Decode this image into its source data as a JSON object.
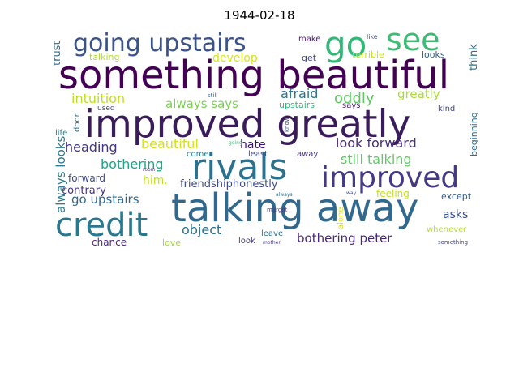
{
  "title": "1944-02-18",
  "words": [
    {
      "text": "something beautiful",
      "color": "#440154"
    },
    {
      "text": "improved greatly",
      "color": "#3b1c5a"
    },
    {
      "text": "talking away",
      "color": "#31688e"
    },
    {
      "text": "going upstairs",
      "color": "#3b528b"
    },
    {
      "text": "go",
      "color": "#35b779"
    },
    {
      "text": "see",
      "color": "#3cbc75"
    },
    {
      "text": "rivals",
      "color": "#2c728e"
    },
    {
      "text": "improved",
      "color": "#443983"
    },
    {
      "text": "credit",
      "color": "#2a788e"
    },
    {
      "text": "afraid",
      "color": "#2c728e"
    },
    {
      "text": "oddly",
      "color": "#5ec962"
    },
    {
      "text": "greatly",
      "color": "#a8db34"
    },
    {
      "text": "intuition",
      "color": "#bddf26"
    },
    {
      "text": "always says",
      "color": "#7ad151"
    },
    {
      "text": "develop",
      "color": "#d8e219"
    },
    {
      "text": "beautiful",
      "color": "#d2e21b"
    },
    {
      "text": "look forward",
      "color": "#472f7d"
    },
    {
      "text": "still talking",
      "color": "#5ec962"
    },
    {
      "text": "heading",
      "color": "#453882"
    },
    {
      "text": "hate",
      "color": "#3b0f70"
    },
    {
      "text": "bothering",
      "color": "#20a386"
    },
    {
      "text": "him.",
      "color": "#c8e020"
    },
    {
      "text": "always looks",
      "color": "#2a7b8e"
    },
    {
      "text": "go upstairs",
      "color": "#30688d"
    },
    {
      "text": "friendshiphonestly",
      "color": "#3e4a89"
    },
    {
      "text": "object",
      "color": "#2e6e8e"
    },
    {
      "text": "bothering peter",
      "color": "#482677"
    },
    {
      "text": "asks",
      "color": "#3b528b"
    },
    {
      "text": "contrary",
      "color": "#46327e"
    },
    {
      "text": "forward",
      "color": "#3f4889"
    },
    {
      "text": "chance",
      "color": "#482878"
    },
    {
      "text": "love",
      "color": "#a0da39"
    },
    {
      "text": "look",
      "color": "#443b84"
    },
    {
      "text": "leave",
      "color": "#2d708e"
    },
    {
      "text": "least",
      "color": "#3e4a89"
    },
    {
      "text": "come",
      "color": "#26828e"
    },
    {
      "text": "away",
      "color": "#46337e"
    },
    {
      "text": "feeling",
      "color": "#c2df23"
    },
    {
      "text": "except",
      "color": "#355f8d"
    },
    {
      "text": "whenever",
      "color": "#b5de2b"
    },
    {
      "text": "trust",
      "color": "#2f6b8e"
    },
    {
      "text": "talking",
      "color": "#b0dd2f"
    },
    {
      "text": "make",
      "color": "#481a6c"
    },
    {
      "text": "get",
      "color": "#414487"
    },
    {
      "text": "like",
      "color": "#3b528b"
    },
    {
      "text": "terrible",
      "color": "#c0df25"
    },
    {
      "text": "looks",
      "color": "#355f8d"
    },
    {
      "text": "think",
      "color": "#2c738e"
    },
    {
      "text": "upstairs",
      "color": "#32b67a"
    },
    {
      "text": "says",
      "color": "#482173"
    },
    {
      "text": "kind",
      "color": "#404688"
    },
    {
      "text": "beginning",
      "color": "#2f6c8e"
    },
    {
      "text": "used",
      "color": "#3f4788"
    },
    {
      "text": "door",
      "color": "#2e6f8e"
    },
    {
      "text": "life",
      "color": "#287d8e"
    },
    {
      "text": "room",
      "color": "#443a83"
    },
    {
      "text": "know",
      "color": "#3f4788"
    },
    {
      "text": "still",
      "color": "#33638d"
    },
    {
      "text": "going",
      "color": "#3fbc73"
    },
    {
      "text": "always",
      "color": "#2e6e8e"
    },
    {
      "text": "margot",
      "color": "#453781"
    },
    {
      "text": "alone",
      "color": "#dde318"
    },
    {
      "text": "way",
      "color": "#3e4989"
    },
    {
      "text": "mother",
      "color": "#433e85"
    },
    {
      "text": "peter",
      "color": "#404588"
    },
    {
      "text": "something",
      "color": "#404688"
    }
  ]
}
